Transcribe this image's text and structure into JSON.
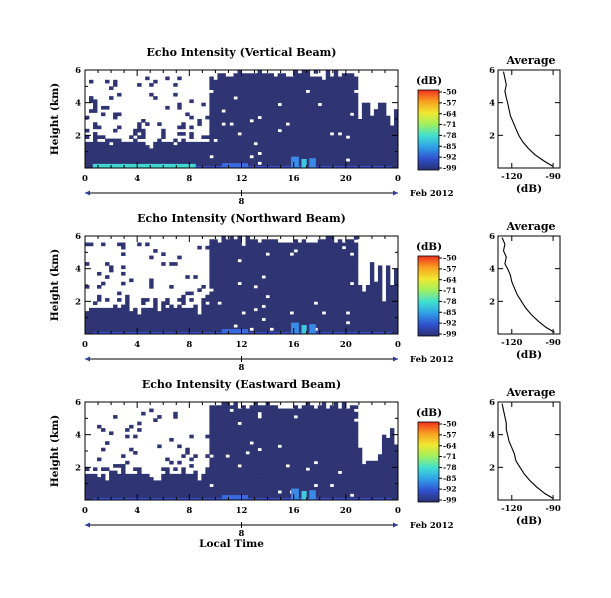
{
  "chart_data": [
    {
      "type": "heatmap",
      "title": "Echo Intensity (Vertical Beam)",
      "ylabel": "Height (km)",
      "x_ticks": [
        "0",
        "4",
        "8",
        "12",
        "16",
        "20",
        "0"
      ],
      "y_ticks": [
        "6",
        "4",
        "2"
      ],
      "xlim": [
        0,
        24
      ],
      "ylim": [
        0,
        6
      ],
      "date_label": "Feb 2012",
      "date_marker": "8",
      "colorbar": {
        "unit": "(dB)",
        "ticks": [
          "-50",
          "-57",
          "-64",
          "-71",
          "-78",
          "-85",
          "-92",
          "-99"
        ],
        "colors": [
          "#f03020",
          "#f8a020",
          "#f0e830",
          "#a0f060",
          "#40e0d0",
          "#30a0e8",
          "#3050d0",
          "#2a3070"
        ]
      },
      "profile": {
        "title": "Average",
        "xlabel": "(dB)",
        "x_ticks": [
          "-120",
          "-90"
        ],
        "y_ticks": [
          "6",
          "4",
          "2"
        ],
        "xlim": [
          -130,
          -85
        ],
        "ylim": [
          0,
          6
        ],
        "height": [
          5.9,
          5.5,
          5.1,
          4.7,
          4.3,
          4.0,
          3.6,
          3.2,
          2.8,
          2.4,
          2.0,
          1.6,
          1.2,
          0.8,
          0.4,
          0.1
        ],
        "db": [
          -126,
          -125,
          -124,
          -125,
          -124,
          -123,
          -122,
          -121,
          -119,
          -117,
          -115,
          -112,
          -108,
          -103,
          -96,
          -90
        ]
      }
    },
    {
      "type": "heatmap",
      "title": "Echo Intensity (Northward Beam)",
      "ylabel": "Height (km)",
      "x_ticks": [
        "0",
        "4",
        "8",
        "12",
        "16",
        "20",
        "0"
      ],
      "y_ticks": [
        "6",
        "4",
        "2"
      ],
      "xlim": [
        0,
        24
      ],
      "ylim": [
        0,
        6
      ],
      "date_label": "Feb 2012",
      "date_marker": "8",
      "colorbar": {
        "unit": "(dB)",
        "ticks": [
          "-50",
          "-57",
          "-64",
          "-71",
          "-78",
          "-85",
          "-92",
          "-99"
        ],
        "colors": [
          "#f03020",
          "#f8a020",
          "#f0e830",
          "#a0f060",
          "#40e0d0",
          "#30a0e8",
          "#3050d0",
          "#2a3070"
        ]
      },
      "profile": {
        "title": "Average",
        "xlabel": "(dB)",
        "x_ticks": [
          "-120",
          "-90"
        ],
        "y_ticks": [
          "6",
          "4",
          "2"
        ],
        "xlim": [
          -130,
          -85
        ],
        "ylim": [
          0,
          6
        ],
        "height": [
          5.9,
          5.5,
          5.1,
          4.7,
          4.3,
          4.0,
          3.6,
          3.2,
          2.8,
          2.4,
          2.0,
          1.6,
          1.2,
          0.8,
          0.4,
          0.1
        ],
        "db": [
          -127,
          -125,
          -126,
          -124,
          -125,
          -123,
          -121,
          -120,
          -118,
          -116,
          -113,
          -110,
          -106,
          -101,
          -95,
          -89
        ]
      }
    },
    {
      "type": "heatmap",
      "title": "Echo Intensity (Eastward Beam)",
      "ylabel": "Height (km)",
      "x_ticks": [
        "0",
        "4",
        "8",
        "12",
        "16",
        "20",
        "0"
      ],
      "y_ticks": [
        "6",
        "4",
        "2"
      ],
      "xlim": [
        0,
        24
      ],
      "ylim": [
        0,
        6
      ],
      "date_label": "Feb 2012",
      "date_marker": "8",
      "xlabel": "Local Time",
      "colorbar": {
        "unit": "(dB)",
        "ticks": [
          "-50",
          "-57",
          "-64",
          "-71",
          "-78",
          "-85",
          "-92",
          "-99"
        ],
        "colors": [
          "#f03020",
          "#f8a020",
          "#f0e830",
          "#a0f060",
          "#40e0d0",
          "#30a0e8",
          "#3050d0",
          "#2a3070"
        ]
      },
      "profile": {
        "title": "Average",
        "xlabel": "(dB)",
        "x_ticks": [
          "-120",
          "-90"
        ],
        "y_ticks": [
          "6",
          "4",
          "2"
        ],
        "xlim": [
          -130,
          -85
        ],
        "ylim": [
          0,
          6
        ],
        "height": [
          5.9,
          5.5,
          5.1,
          4.7,
          4.3,
          4.0,
          3.6,
          3.2,
          2.8,
          2.4,
          2.0,
          1.6,
          1.2,
          0.8,
          0.4,
          0.1
        ],
        "db": [
          -127,
          -126,
          -125,
          -124,
          -124,
          -123,
          -122,
          -120,
          -118,
          -117,
          -114,
          -111,
          -107,
          -102,
          -96,
          -90
        ]
      }
    }
  ]
}
